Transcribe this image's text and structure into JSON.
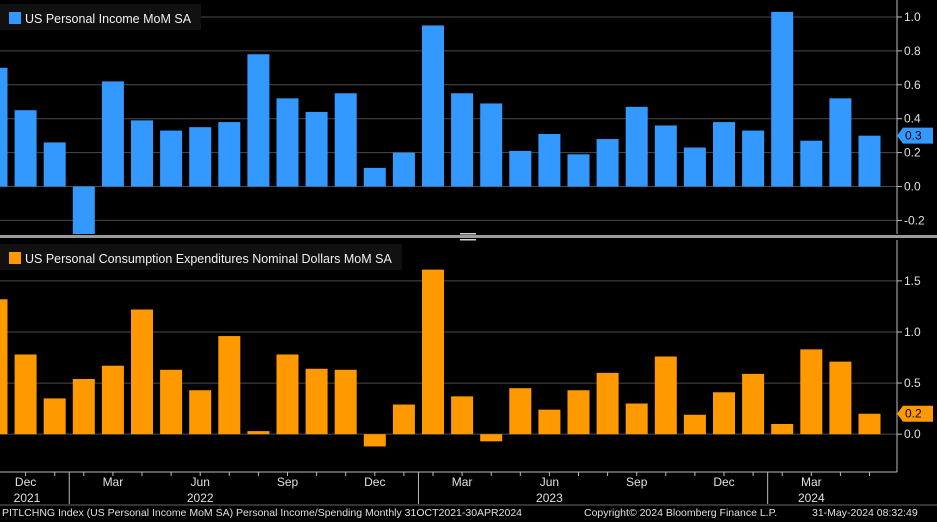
{
  "chart_data": [
    {
      "type": "bar",
      "title": "US Personal Income MoM SA",
      "color": "#3399ff",
      "values": [
        0.7,
        0.45,
        0.26,
        -0.28,
        0.62,
        0.39,
        0.33,
        0.35,
        0.38,
        0.78,
        0.52,
        0.44,
        0.55,
        0.11,
        0.2,
        0.95,
        0.55,
        0.49,
        0.21,
        0.31,
        0.19,
        0.28,
        0.47,
        0.36,
        0.23,
        0.38,
        0.33,
        1.03,
        0.27,
        0.52,
        0.3
      ],
      "ylim": [
        -0.28,
        1.1
      ],
      "y_ticks": [
        -0.2,
        0.0,
        0.2,
        0.4,
        0.6,
        0.8,
        1.0
      ],
      "y_tick_labels": [
        "-0.2",
        "0.0",
        "0.2",
        "0.4",
        "0.6",
        "0.8",
        "1.0"
      ],
      "last_value": 0.3,
      "last_value_label": "0.3",
      "legend": "top-left",
      "grid": true
    },
    {
      "type": "bar",
      "title": "US Personal Consumption Expenditures Nominal Dollars MoM SA",
      "color": "#ff9900",
      "values": [
        1.32,
        0.78,
        0.35,
        0.54,
        0.67,
        1.22,
        0.63,
        0.43,
        0.96,
        0.03,
        0.78,
        0.64,
        0.63,
        -0.12,
        0.29,
        1.61,
        0.37,
        -0.07,
        0.45,
        0.24,
        0.43,
        0.6,
        0.3,
        0.76,
        0.19,
        0.41,
        0.59,
        0.1,
        0.83,
        0.71,
        0.2
      ],
      "ylim": [
        -0.37,
        1.9
      ],
      "y_ticks": [
        0.0,
        0.5,
        1.0,
        1.5
      ],
      "y_tick_labels": [
        "0.0",
        "0.5",
        "1.0",
        "1.5"
      ],
      "last_value": 0.2,
      "last_value_label": "0.2",
      "legend": "top-left",
      "grid": true
    }
  ],
  "x_axis": {
    "month_labels": [
      {
        "label": "Dec",
        "index": 1
      },
      {
        "label": "Mar",
        "index": 4
      },
      {
        "label": "Jun",
        "index": 7
      },
      {
        "label": "Sep",
        "index": 10
      },
      {
        "label": "Dec",
        "index": 13
      },
      {
        "label": "Mar",
        "index": 16
      },
      {
        "label": "Jun",
        "index": 19
      },
      {
        "label": "Sep",
        "index": 22
      },
      {
        "label": "Dec",
        "index": 25
      },
      {
        "label": "Mar",
        "index": 28
      }
    ],
    "year_labels": [
      {
        "label": "2021",
        "index": 0
      },
      {
        "label": "2022",
        "index": 7
      },
      {
        "label": "2023",
        "index": 19
      },
      {
        "label": "2024",
        "index": 28
      }
    ],
    "year_separators": [
      2,
      14,
      26
    ]
  },
  "footer": {
    "source": "PITLCHNG Index (US Personal Income MoM SA) Personal Income/Spending  Monthly 31OCT2021-30APR2024",
    "copyright": "Copyright© 2024 Bloomberg Finance L.P.",
    "timestamp": "31-May-2024 08:32:49"
  }
}
